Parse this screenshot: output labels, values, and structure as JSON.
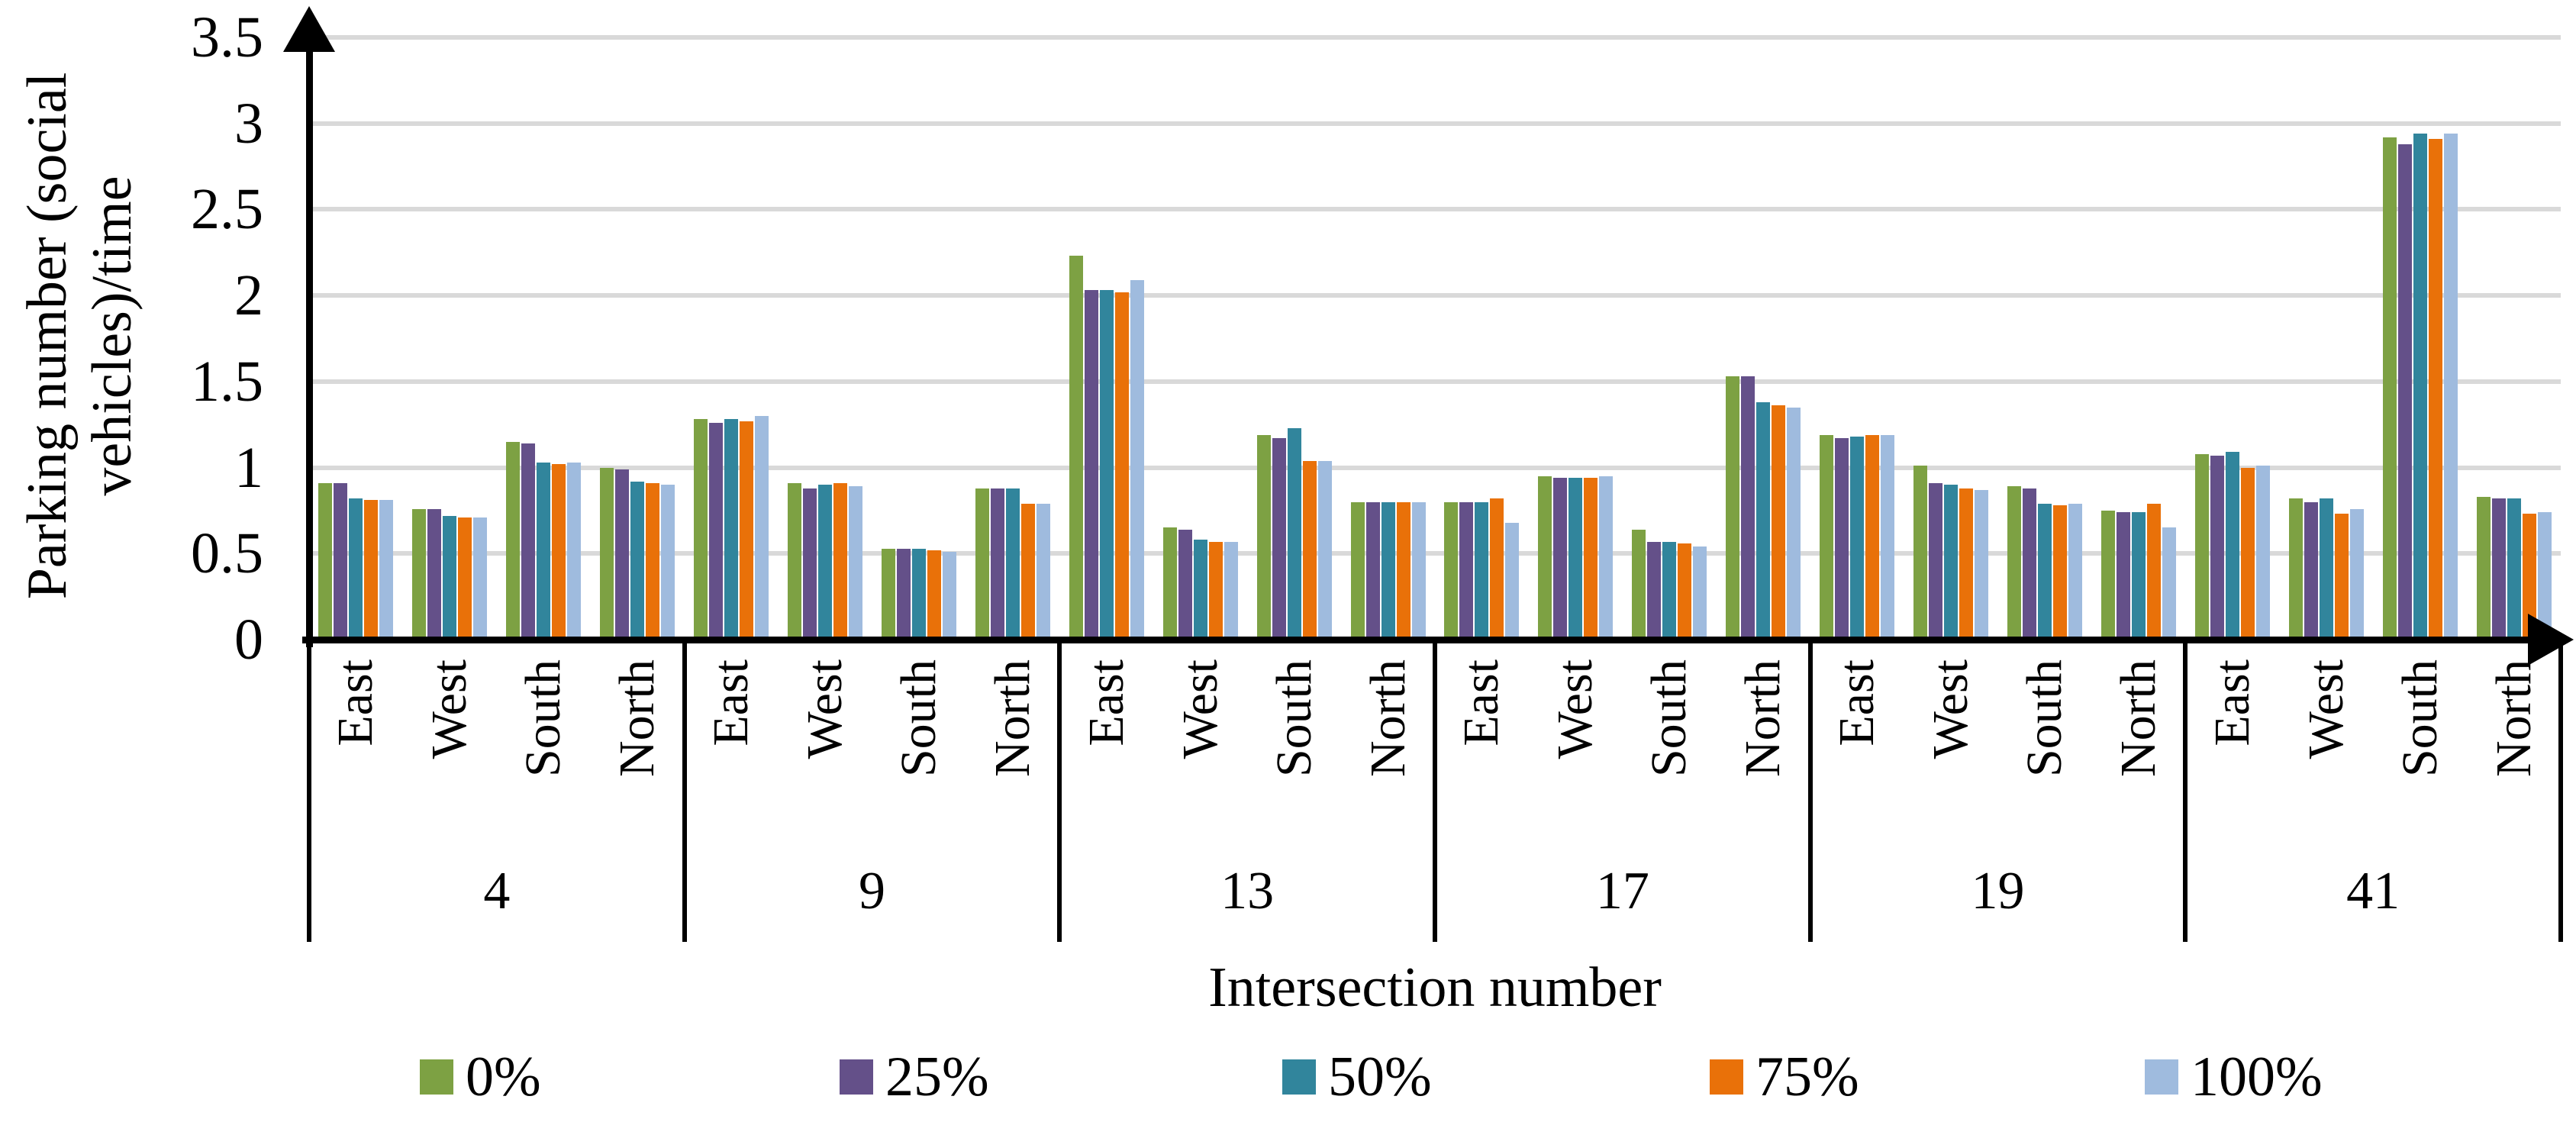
{
  "chart_data": {
    "type": "bar",
    "xlabel": "Intersection number",
    "ylabel": "Parking number (social vehicles)/time",
    "ylabel_line1": "Parking number (social",
    "ylabel_line2": "vehicles)/time",
    "ylim": [
      0,
      3.5
    ],
    "grid": true,
    "legend_position": "bottom",
    "yticks": [
      {
        "label": "0",
        "value": 0
      },
      {
        "label": "0.5",
        "value": 0.5
      },
      {
        "label": "1",
        "value": 1
      },
      {
        "label": "1.5",
        "value": 1.5
      },
      {
        "label": "2",
        "value": 2
      },
      {
        "label": "2.5",
        "value": 2.5
      },
      {
        "label": "3",
        "value": 3
      },
      {
        "label": "3.5",
        "value": 3.5
      }
    ],
    "series": [
      {
        "name": "0%",
        "color": "#7da143"
      },
      {
        "name": "25%",
        "color": "#645089"
      },
      {
        "name": "50%",
        "color": "#31859c"
      },
      {
        "name": "75%",
        "color": "#e97109"
      },
      {
        "name": "100%",
        "color": "#9fbbde"
      }
    ],
    "direction_order": [
      "East",
      "West",
      "South",
      "North"
    ],
    "groups": [
      {
        "label": "4",
        "directions": [
          {
            "label": "East",
            "values": [
              0.91,
              0.91,
              0.82,
              0.81,
              0.81
            ]
          },
          {
            "label": "West",
            "values": [
              0.76,
              0.76,
              0.72,
              0.71,
              0.71
            ]
          },
          {
            "label": "South",
            "values": [
              1.15,
              1.14,
              1.03,
              1.02,
              1.03
            ]
          },
          {
            "label": "North",
            "values": [
              1.0,
              0.99,
              0.92,
              0.91,
              0.9
            ]
          }
        ]
      },
      {
        "label": "9",
        "directions": [
          {
            "label": "East",
            "values": [
              1.28,
              1.26,
              1.28,
              1.27,
              1.3
            ]
          },
          {
            "label": "West",
            "values": [
              0.91,
              0.88,
              0.9,
              0.91,
              0.89
            ]
          },
          {
            "label": "South",
            "values": [
              0.53,
              0.53,
              0.53,
              0.52,
              0.51
            ]
          },
          {
            "label": "North",
            "values": [
              0.88,
              0.88,
              0.88,
              0.79,
              0.79
            ]
          }
        ]
      },
      {
        "label": "13",
        "directions": [
          {
            "label": "East",
            "values": [
              2.23,
              2.03,
              2.03,
              2.02,
              2.09
            ]
          },
          {
            "label": "West",
            "values": [
              0.65,
              0.64,
              0.58,
              0.57,
              0.57
            ]
          },
          {
            "label": "South",
            "values": [
              1.19,
              1.17,
              1.23,
              1.04,
              1.04
            ]
          },
          {
            "label": "North",
            "values": [
              0.8,
              0.8,
              0.8,
              0.8,
              0.8
            ]
          }
        ]
      },
      {
        "label": "17",
        "directions": [
          {
            "label": "East",
            "values": [
              0.8,
              0.8,
              0.8,
              0.82,
              0.68
            ]
          },
          {
            "label": "West",
            "values": [
              0.95,
              0.94,
              0.94,
              0.94,
              0.95
            ]
          },
          {
            "label": "South",
            "values": [
              0.64,
              0.57,
              0.57,
              0.56,
              0.54
            ]
          },
          {
            "label": "North",
            "values": [
              1.53,
              1.53,
              1.38,
              1.36,
              1.35
            ]
          }
        ]
      },
      {
        "label": "19",
        "directions": [
          {
            "label": "East",
            "values": [
              1.19,
              1.17,
              1.18,
              1.19,
              1.19
            ]
          },
          {
            "label": "West",
            "values": [
              1.01,
              0.91,
              0.9,
              0.88,
              0.87
            ]
          },
          {
            "label": "South",
            "values": [
              0.89,
              0.88,
              0.79,
              0.78,
              0.79
            ]
          },
          {
            "label": "North",
            "values": [
              0.75,
              0.74,
              0.74,
              0.79,
              0.65
            ]
          }
        ]
      },
      {
        "label": "41",
        "directions": [
          {
            "label": "East",
            "values": [
              1.08,
              1.07,
              1.09,
              1.0,
              1.01
            ]
          },
          {
            "label": "West",
            "values": [
              0.82,
              0.8,
              0.82,
              0.73,
              0.76
            ]
          },
          {
            "label": "South",
            "values": [
              2.92,
              2.88,
              2.94,
              2.91,
              2.94
            ]
          },
          {
            "label": "North",
            "values": [
              0.83,
              0.82,
              0.82,
              0.73,
              0.74
            ]
          }
        ]
      }
    ],
    "colors": {
      "grid": "#d9d9d9",
      "axis": "#000000",
      "text": "#000000"
    }
  }
}
